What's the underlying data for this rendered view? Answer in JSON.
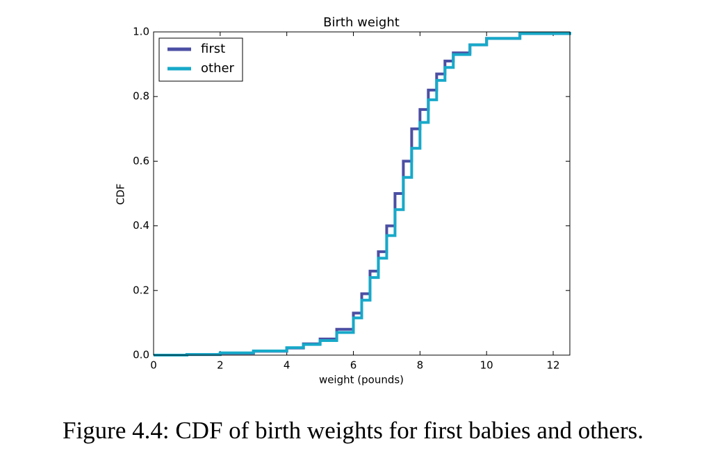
{
  "chart_data": {
    "type": "line",
    "drawstyle": "steps-post",
    "title": "Birth weight",
    "xlabel": "weight (pounds)",
    "ylabel": "CDF",
    "caption": "Figure 4.4: CDF of birth weights for first babies and others.",
    "x": [
      0,
      1,
      2,
      3,
      4,
      4.5,
      5,
      5.5,
      6,
      6.25,
      6.5,
      6.75,
      7,
      7.25,
      7.5,
      7.75,
      8,
      8.25,
      8.5,
      8.75,
      9,
      9.5,
      10,
      11,
      12.5
    ],
    "series": [
      {
        "name": "first",
        "color": "#4b4fa3",
        "values": [
          0,
          0.002,
          0.006,
          0.012,
          0.022,
          0.035,
          0.05,
          0.08,
          0.13,
          0.19,
          0.26,
          0.32,
          0.4,
          0.5,
          0.6,
          0.7,
          0.76,
          0.82,
          0.87,
          0.91,
          0.935,
          0.96,
          0.98,
          0.995,
          1.0
        ]
      },
      {
        "name": "other",
        "color": "#17a9c9",
        "values": [
          0,
          0.002,
          0.007,
          0.013,
          0.023,
          0.033,
          0.045,
          0.07,
          0.115,
          0.17,
          0.24,
          0.3,
          0.37,
          0.45,
          0.55,
          0.64,
          0.72,
          0.79,
          0.85,
          0.89,
          0.93,
          0.96,
          0.98,
          0.995,
          1.0
        ]
      }
    ],
    "xlim": [
      0,
      12.5
    ],
    "ylim": [
      0,
      1
    ],
    "xticks": [
      0,
      2,
      4,
      6,
      8,
      10,
      12
    ],
    "yticks": [
      {
        "value": 0,
        "label": "0.0"
      },
      0.2,
      0.4,
      0.6,
      0.8,
      {
        "value": 1,
        "label": "1.0"
      }
    ],
    "grid": false,
    "legend": "upper left"
  }
}
